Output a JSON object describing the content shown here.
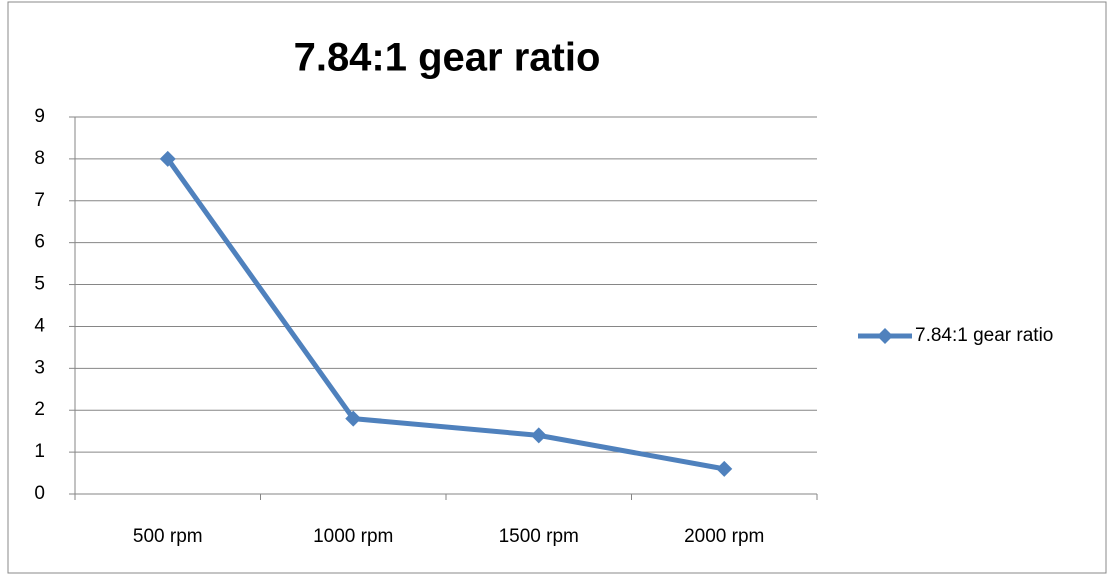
{
  "chart_data": {
    "type": "line",
    "title": "7.84:1 gear ratio",
    "categories": [
      "500 rpm",
      "1000 rpm",
      "1500 rpm",
      "2000 rpm"
    ],
    "series": [
      {
        "name": "7.84:1 gear ratio",
        "color": "#4f81bd",
        "values": [
          8,
          1.8,
          1.4,
          0.6
        ]
      }
    ],
    "ylim": [
      0,
      9
    ],
    "yticks": [
      0,
      1,
      2,
      3,
      4,
      5,
      6,
      7,
      8,
      9
    ],
    "grid": true,
    "legend": "right"
  }
}
